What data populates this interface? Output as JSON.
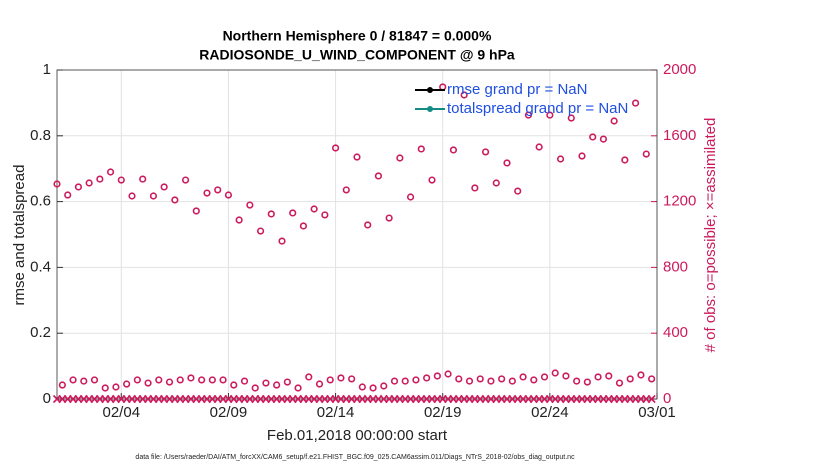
{
  "chart_data": {
    "type": "scatter",
    "title": "Northern Hemisphere 0 / 81847 = 0.000%",
    "subtitle": "RADIOSONDE_U_WIND_COMPONENT @ 9 hPa",
    "xlabel": "Feb.01,2018 00:00:00 start",
    "ylabel": "rmse and totalspread",
    "y2label": "# of obs: o=possible; ×=assimilated",
    "footnote": "data file: /Users/raeder/DAI/ATM_forcXX/CAM6_setup/f.e21.FHIST_BGC.f09_025.CAM6assim.011/Diags_NTrS_2018-02/obs_diag_output.nc",
    "xlim": [
      0,
      28
    ],
    "xticks": [
      {
        "value": 3,
        "label": "02/04"
      },
      {
        "value": 8,
        "label": "02/09"
      },
      {
        "value": 13,
        "label": "02/14"
      },
      {
        "value": 18,
        "label": "02/19"
      },
      {
        "value": 23,
        "label": "02/24"
      },
      {
        "value": 28,
        "label": "03/01"
      }
    ],
    "ylim": [
      0,
      1
    ],
    "yticks": [
      0,
      0.2,
      0.4,
      0.6,
      0.8,
      1
    ],
    "y2lim": [
      0,
      2000
    ],
    "y2ticks": [
      0,
      400,
      800,
      1200,
      1600,
      2000
    ],
    "grid": true,
    "legend": "upper right",
    "series": [
      {
        "name": "rmse grand pr = NaN",
        "color": "#000000"
      },
      {
        "name": "totalspread grand pr = NaN",
        "color": "#138c84"
      },
      {
        "color": "#cc1a5c",
        "marker": "circle",
        "axis": "y2",
        "x": [
          0,
          0.5,
          1,
          1.5,
          2,
          2.5,
          3,
          3.5,
          4,
          4.5,
          5,
          5.5,
          6,
          6.5,
          7,
          7.5,
          8,
          8.5,
          9,
          9.5,
          10,
          10.5,
          11,
          11.5,
          12,
          12.5,
          13,
          13.5,
          14,
          14.5,
          15,
          15.5,
          16,
          16.5,
          17,
          17.5,
          18,
          18.5,
          19,
          19.5,
          20,
          20.5,
          21,
          21.5,
          22,
          22.5,
          23,
          23.5,
          24,
          24.5,
          25,
          25.5,
          26,
          26.5,
          27,
          27.5
        ],
        "values": [
          1307,
          1240,
          1289,
          1313,
          1337,
          1380,
          1331,
          1234,
          1337,
          1234,
          1289,
          1210,
          1331,
          1143,
          1252,
          1271,
          1240,
          1088,
          1179,
          1021,
          1125,
          960,
          1131,
          1052,
          1155,
          1119,
          1526,
          1271,
          1471,
          1058,
          1356,
          1100,
          1465,
          1228,
          1520,
          1331,
          1897,
          1514,
          1848,
          1283,
          1502,
          1313,
          1435,
          1264,
          1726,
          1532,
          1726,
          1459,
          1708,
          1477,
          1593,
          1580,
          1690,
          1453,
          1799,
          1489
        ]
      },
      {
        "color": "#cc1a5c",
        "marker": "circle",
        "axis": "y2",
        "x": [
          0.25,
          0.75,
          1.25,
          1.75,
          2.25,
          2.75,
          3.25,
          3.75,
          4.25,
          4.75,
          5.25,
          5.75,
          6.25,
          6.75,
          7.25,
          7.75,
          8.25,
          8.75,
          9.25,
          9.75,
          10.25,
          10.75,
          11.25,
          11.75,
          12.25,
          12.75,
          13.25,
          13.75,
          14.25,
          14.75,
          15.25,
          15.75,
          16.25,
          16.75,
          17.25,
          17.75,
          18.25,
          18.75,
          19.25,
          19.75,
          20.25,
          20.75,
          21.25,
          21.75,
          22.25,
          22.75,
          23.25,
          23.75,
          24.25,
          24.75,
          25.25,
          25.75,
          26.25,
          26.75,
          27.25,
          27.75
        ],
        "values": [
          85,
          116,
          109,
          116,
          67,
          73,
          91,
          116,
          97,
          116,
          103,
          116,
          128,
          116,
          116,
          116,
          85,
          109,
          67,
          97,
          85,
          103,
          67,
          134,
          91,
          116,
          128,
          122,
          73,
          67,
          79,
          109,
          109,
          116,
          128,
          140,
          152,
          122,
          109,
          122,
          109,
          122,
          109,
          134,
          116,
          134,
          158,
          140,
          109,
          103,
          134,
          140,
          97,
          122,
          146,
          122
        ]
      },
      {
        "color": "#cc1a5c",
        "marker": "x",
        "axis": "y2",
        "x": [
          0,
          0.5,
          1,
          1.5,
          2,
          2.5,
          3,
          3.5,
          4,
          4.5,
          5,
          5.5,
          6,
          6.5,
          7,
          7.5,
          8,
          8.5,
          9,
          9.5,
          10,
          10.5,
          11,
          11.5,
          12,
          12.5,
          13,
          13.5,
          14,
          14.5,
          15,
          15.5,
          16,
          16.5,
          17,
          17.5,
          18,
          18.5,
          19,
          19.5,
          20,
          20.5,
          21,
          21.5,
          22,
          22.5,
          23,
          23.5,
          24,
          24.5,
          25,
          25.5,
          26,
          26.5,
          27,
          27.5
        ],
        "values": [
          0,
          0,
          0,
          0,
          0,
          0,
          0,
          0,
          0,
          0,
          0,
          0,
          0,
          0,
          0,
          0,
          0,
          0,
          0,
          0,
          0,
          0,
          0,
          0,
          0,
          0,
          0,
          0,
          0,
          0,
          0,
          0,
          0,
          0,
          0,
          0,
          0,
          0,
          0,
          0,
          0,
          0,
          0,
          0,
          0,
          0,
          0,
          0,
          0,
          0,
          0,
          0,
          0,
          0,
          0,
          0
        ]
      },
      {
        "color": "#cc1a5c",
        "marker": "x",
        "axis": "y2",
        "x": [
          0.25,
          0.75,
          1.25,
          1.75,
          2.25,
          2.75,
          3.25,
          3.75,
          4.25,
          4.75,
          5.25,
          5.75,
          6.25,
          6.75,
          7.25,
          7.75,
          8.25,
          8.75,
          9.25,
          9.75,
          10.25,
          10.75,
          11.25,
          11.75,
          12.25,
          12.75,
          13.25,
          13.75,
          14.25,
          14.75,
          15.25,
          15.75,
          16.25,
          16.75,
          17.25,
          17.75,
          18.25,
          18.75,
          19.25,
          19.75,
          20.25,
          20.75,
          21.25,
          21.75,
          22.25,
          22.75,
          23.25,
          23.75,
          24.25,
          24.75,
          25.25,
          25.75,
          26.25,
          26.75,
          27.25,
          27.75
        ],
        "values": [
          0,
          0,
          0,
          0,
          0,
          0,
          0,
          0,
          0,
          0,
          0,
          0,
          0,
          0,
          0,
          0,
          0,
          0,
          0,
          0,
          0,
          0,
          0,
          0,
          0,
          0,
          0,
          0,
          0,
          0,
          0,
          0,
          0,
          0,
          0,
          0,
          0,
          0,
          0,
          0,
          0,
          0,
          0,
          0,
          0,
          0,
          0,
          0,
          0,
          0,
          0,
          0,
          0,
          0,
          0,
          0
        ]
      }
    ]
  }
}
